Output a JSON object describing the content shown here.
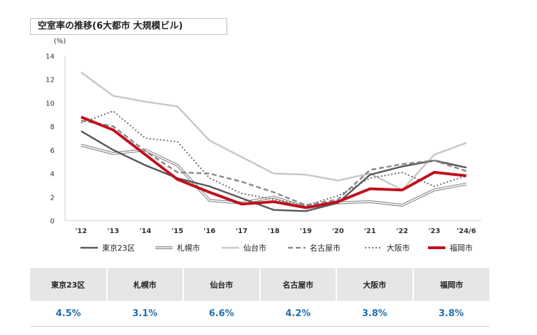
{
  "header": {
    "title": "空室率の推移(6大都市 大規模ビル)"
  },
  "chart_data": {
    "type": "line",
    "ylabel": "(%)",
    "ylim": [
      0,
      14
    ],
    "yticks": [
      0,
      2,
      4,
      6,
      8,
      10,
      12,
      14
    ],
    "categories": [
      "'12",
      "'13",
      "'14",
      "'15",
      "'16",
      "'17",
      "'18",
      "'19",
      "'20",
      "'21",
      "'22",
      "'23",
      "'24/6"
    ],
    "legend_position": "bottom",
    "series": [
      {
        "name": "東京23区",
        "style": "solid-dark",
        "color": "#5a5a5a",
        "values": [
          7.6,
          6.0,
          4.7,
          3.6,
          2.9,
          1.9,
          0.9,
          0.8,
          1.5,
          3.9,
          4.6,
          5.1,
          4.5
        ]
      },
      {
        "name": "札幌市",
        "style": "double",
        "color": "#8c8c8c",
        "values": [
          6.4,
          5.7,
          6.0,
          4.7,
          1.7,
          1.5,
          2.0,
          1.1,
          1.5,
          1.6,
          1.3,
          2.6,
          3.1
        ]
      },
      {
        "name": "仙台市",
        "style": "solid-light",
        "color": "#c8c8c8",
        "values": [
          12.6,
          10.6,
          10.1,
          9.7,
          6.8,
          5.4,
          4.0,
          3.9,
          3.4,
          4.0,
          2.6,
          5.6,
          6.6
        ]
      },
      {
        "name": "名古屋市",
        "style": "dashed",
        "color": "#8a8a8a",
        "values": [
          8.5,
          8.0,
          5.9,
          4.1,
          4.0,
          3.3,
          2.4,
          1.3,
          1.8,
          4.3,
          4.8,
          5.1,
          4.2
        ]
      },
      {
        "name": "大阪市",
        "style": "dotted",
        "color": "#6e6e6e",
        "values": [
          8.3,
          9.3,
          7.0,
          6.7,
          3.6,
          2.3,
          1.8,
          1.3,
          2.1,
          3.6,
          4.1,
          2.9,
          3.8
        ]
      },
      {
        "name": "福岡市",
        "style": "bold-red",
        "color": "#c0101e",
        "values": [
          8.8,
          7.7,
          5.6,
          3.5,
          2.4,
          1.4,
          1.6,
          1.1,
          1.6,
          2.7,
          2.6,
          4.1,
          3.8
        ]
      }
    ]
  },
  "summary": {
    "headers": [
      "東京23区",
      "札幌市",
      "仙台市",
      "名古屋市",
      "大阪市",
      "福岡市"
    ],
    "values": [
      "4.5%",
      "3.1%",
      "6.6%",
      "4.2%",
      "3.8%",
      "3.8%"
    ]
  }
}
